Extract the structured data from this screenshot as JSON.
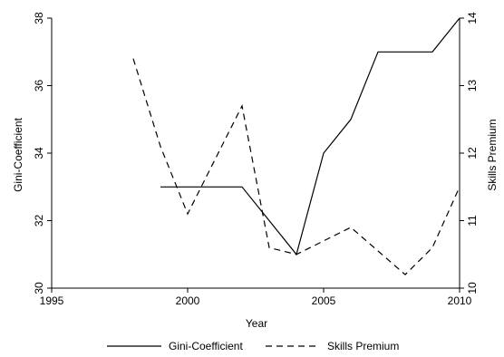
{
  "chart_data": {
    "type": "line",
    "title": "",
    "xlabel": "Year",
    "ylabel_left": "Gini-Coefficient",
    "ylabel_right": "Skills Premium",
    "xlim": [
      1995,
      2010
    ],
    "ylim_left": [
      30,
      38
    ],
    "ylim_right": [
      10,
      14
    ],
    "x_ticks": [
      1995,
      2000,
      2005,
      2010
    ],
    "y_ticks_left": [
      30,
      32,
      34,
      36,
      38
    ],
    "y_ticks_right": [
      10,
      11,
      12,
      13,
      14
    ],
    "grid": false,
    "legend_position": "bottom",
    "series": [
      {
        "name": "Gini-Coefficient",
        "axis": "left",
        "style": "solid",
        "color": "#000000",
        "x": [
          1999,
          2000,
          2001,
          2002,
          2003,
          2004,
          2005,
          2006,
          2007,
          2008,
          2009,
          2010
        ],
        "y": [
          33,
          33,
          33,
          33,
          32,
          31,
          34,
          35,
          37,
          37,
          37,
          38
        ]
      },
      {
        "name": "Skills Premium",
        "axis": "right",
        "style": "dashed",
        "color": "#000000",
        "x": [
          1998,
          1999,
          2000,
          2001,
          2002,
          2003,
          2004,
          2005,
          2006,
          2007,
          2008,
          2009,
          2010
        ],
        "y": [
          13.4,
          12.1,
          11.1,
          11.9,
          12.7,
          10.6,
          10.5,
          10.7,
          10.9,
          10.55,
          10.2,
          10.6,
          11.5
        ]
      }
    ]
  }
}
